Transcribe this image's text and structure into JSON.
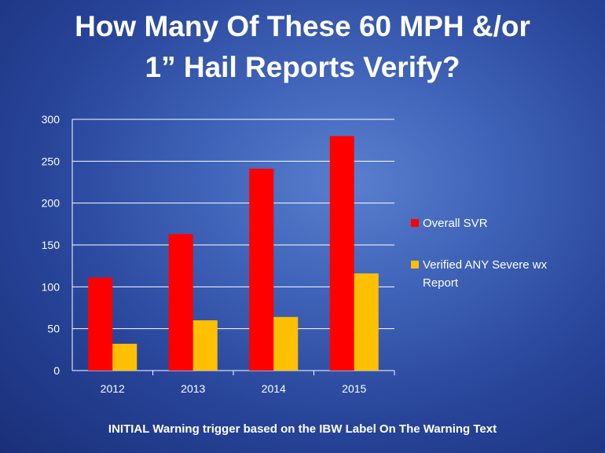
{
  "slide": {
    "title_line1": "How Many Of These 60 MPH &/or",
    "title_line2": "1” Hail Reports Verify?",
    "footer": "INITIAL Warning trigger based on the IBW Label On The Warning Text"
  },
  "chart_data": {
    "type": "bar",
    "categories": [
      "2012",
      "2013",
      "2014",
      "2015"
    ],
    "series": [
      {
        "name": "Overall SVR",
        "values": [
          111,
          163,
          241,
          280
        ],
        "color": "#ff0000"
      },
      {
        "name": "Verified ANY Severe wx Report",
        "values": [
          32,
          60,
          64,
          116
        ],
        "color": "#ffc000"
      }
    ],
    "ylim": [
      0,
      300
    ],
    "yticks": [
      0,
      50,
      100,
      150,
      200,
      250,
      300
    ],
    "grid": true,
    "legend_position": "right"
  }
}
